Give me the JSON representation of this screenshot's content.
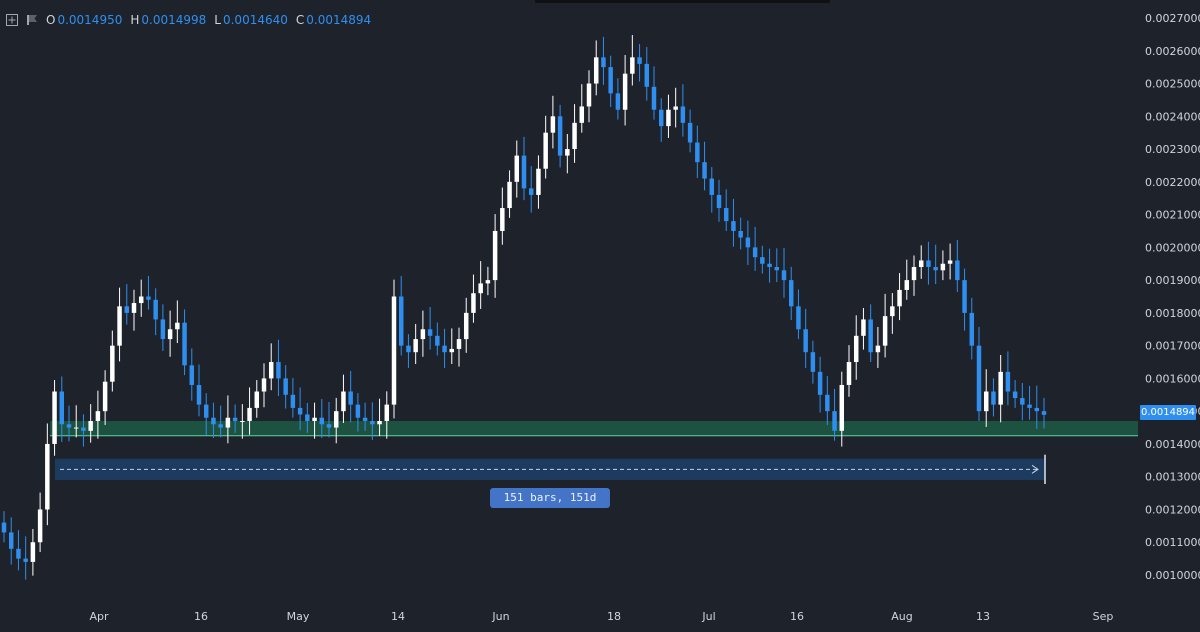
{
  "ohlc": {
    "open_key": "O",
    "open": "0.0014950",
    "high_key": "H",
    "high": "0.0014998",
    "low_key": "L",
    "low": "0.0014640",
    "close_key": "C",
    "close": "0.0014894"
  },
  "price_label": "0.0014894",
  "range_label": "151 bars, 151d",
  "colors": {
    "background": "#1e222b",
    "up": "#ffffff",
    "down": "#2e8ff0",
    "support_zone": "#1f5a44",
    "support_line": "#5fd3a3",
    "range_box": "#1d3b5e"
  },
  "icons": [
    "crosshair-icon",
    "flag-icon"
  ],
  "chart_data": {
    "type": "candlestick",
    "y_ticks": [
      "0.0010000",
      "0.0011000",
      "0.0012000",
      "0.0013000",
      "0.0014000",
      "0.0015000",
      "0.0016000",
      "0.0017000",
      "0.0018000",
      "0.0019000",
      "0.0020000",
      "0.0021000",
      "0.0022000",
      "0.0023000",
      "0.0024000",
      "0.0025000",
      "0.0026000",
      "0.0027000"
    ],
    "ylim": [
      0.00094,
      0.00273
    ],
    "x_ticks": [
      "Apr",
      "16",
      "May",
      "14",
      "Jun",
      "18",
      "Jul",
      "16",
      "Aug",
      "13",
      "Sep"
    ],
    "support_zone": [
      0.001425,
      0.00147
    ],
    "support_line": 0.001425,
    "last_price": 0.0014894,
    "range_measure": {
      "bars": 151,
      "days": 151,
      "level_low": 0.00129,
      "level_high": 0.001355
    },
    "closes": [
      0.00113,
      0.00108,
      0.00105,
      0.00104,
      0.0011,
      0.0012,
      0.0014,
      0.00156,
      0.00146,
      0.00145,
      0.00145,
      0.00144,
      0.00147,
      0.0015,
      0.00159,
      0.0017,
      0.00182,
      0.0018,
      0.00183,
      0.00185,
      0.00184,
      0.00178,
      0.00172,
      0.00175,
      0.00177,
      0.00164,
      0.00158,
      0.00152,
      0.00148,
      0.00146,
      0.00145,
      0.00148,
      0.00147,
      0.00147,
      0.00151,
      0.00156,
      0.0016,
      0.00165,
      0.0016,
      0.00155,
      0.00151,
      0.00149,
      0.00147,
      0.00148,
      0.00146,
      0.00145,
      0.0015,
      0.00156,
      0.00152,
      0.00148,
      0.00147,
      0.00146,
      0.00147,
      0.00152,
      0.00185,
      0.0017,
      0.00168,
      0.00172,
      0.00175,
      0.00173,
      0.0017,
      0.00168,
      0.00169,
      0.00172,
      0.0018,
      0.00186,
      0.00189,
      0.0019,
      0.00205,
      0.00212,
      0.0022,
      0.00228,
      0.00218,
      0.00216,
      0.00224,
      0.00235,
      0.0024,
      0.00228,
      0.0023,
      0.00238,
      0.00243,
      0.0025,
      0.00258,
      0.00255,
      0.00247,
      0.00242,
      0.00253,
      0.00258,
      0.00256,
      0.00249,
      0.00242,
      0.00237,
      0.00242,
      0.00243,
      0.00238,
      0.00232,
      0.00226,
      0.00221,
      0.00216,
      0.00212,
      0.00208,
      0.00205,
      0.00203,
      0.002,
      0.00197,
      0.00195,
      0.00194,
      0.00193,
      0.0019,
      0.00182,
      0.00175,
      0.00168,
      0.00162,
      0.00155,
      0.0015,
      0.00144,
      0.00158,
      0.00165,
      0.00173,
      0.00178,
      0.00168,
      0.0017,
      0.00179,
      0.00182,
      0.00187,
      0.0019,
      0.00194,
      0.00196,
      0.00194,
      0.00193,
      0.00195,
      0.00196,
      0.0019,
      0.0018,
      0.0017,
      0.0015,
      0.00156,
      0.00152,
      0.00162,
      0.00156,
      0.00154,
      0.00152,
      0.00151,
      0.0015,
      0.001489
    ]
  }
}
